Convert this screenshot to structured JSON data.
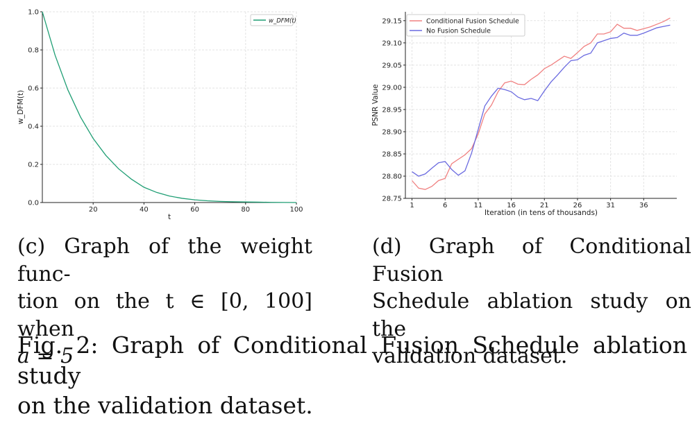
{
  "captions": {
    "c_line1": "(c) Graph of the weight func-",
    "c_line2": "tion on the t ∈ [0, 100] when",
    "c_line3": "a = 5",
    "d_line1": "(d) Graph of Conditional Fusion",
    "d_line2": "Schedule ablation study on the",
    "d_line3": "validation dataset.",
    "fig_line1": "Fig. 2: Graph of Conditional Fusion Schedule ablation study",
    "fig_line2": "on the validation dataset."
  },
  "chart_data": [
    {
      "type": "line",
      "title": "",
      "xlabel": "t",
      "ylabel": "w_DFM(t)",
      "xlim": [
        0,
        100
      ],
      "ylim": [
        0,
        1
      ],
      "x_ticks": [
        20,
        40,
        60,
        80,
        100
      ],
      "y_ticks": [
        0.0,
        0.2,
        0.4,
        0.6,
        0.8,
        1.0
      ],
      "grid": true,
      "legend_position": "top-right",
      "color": "#1f9e74",
      "series": [
        {
          "name": "w_DFM(t)",
          "x": [
            0,
            5,
            10,
            15,
            20,
            25,
            30,
            35,
            40,
            45,
            50,
            55,
            60,
            65,
            70,
            75,
            80,
            85,
            90,
            95,
            100
          ],
          "values": [
            1.0,
            0.773,
            0.592,
            0.449,
            0.336,
            0.247,
            0.177,
            0.123,
            0.08,
            0.053,
            0.034,
            0.022,
            0.014,
            0.009,
            0.006,
            0.004,
            0.003,
            0.002,
            0.001,
            0.0005,
            0.0
          ]
        }
      ]
    },
    {
      "type": "line",
      "title": "",
      "xlabel": "Iteration (in tens of thousands)",
      "ylabel": "PSNR Value",
      "xlim": [
        0,
        41
      ],
      "ylim": [
        28.75,
        29.17
      ],
      "x_ticks": [
        1,
        6,
        11,
        16,
        21,
        26,
        31,
        36
      ],
      "y_ticks": [
        28.75,
        28.8,
        28.85,
        28.9,
        28.95,
        29.0,
        29.05,
        29.1,
        29.15
      ],
      "grid": true,
      "legend_position": "top-left",
      "series": [
        {
          "name": "Conditional Fusion Schedule",
          "color": "#f08080",
          "x": [
            1,
            2,
            3,
            4,
            5,
            6,
            7,
            8,
            9,
            10,
            11,
            12,
            13,
            14,
            15,
            16,
            17,
            18,
            19,
            20,
            21,
            22,
            23,
            24,
            25,
            26,
            27,
            28,
            29,
            30,
            31,
            32,
            33,
            34,
            35,
            36,
            37,
            38,
            39,
            40
          ],
          "values": [
            28.79,
            28.773,
            28.77,
            28.777,
            28.79,
            28.795,
            28.828,
            28.838,
            28.848,
            28.862,
            28.895,
            28.94,
            28.96,
            28.99,
            29.01,
            29.014,
            29.007,
            29.006,
            29.018,
            29.028,
            29.042,
            29.05,
            29.06,
            29.07,
            29.065,
            29.078,
            29.092,
            29.1,
            29.12,
            29.12,
            29.125,
            29.142,
            29.133,
            29.133,
            29.128,
            29.132,
            29.136,
            29.142,
            29.148,
            29.156
          ]
        },
        {
          "name": "No Fusion Schedule",
          "color": "#6a6ae0",
          "x": [
            1,
            2,
            3,
            4,
            5,
            6,
            7,
            8,
            9,
            10,
            11,
            12,
            13,
            14,
            15,
            16,
            17,
            18,
            19,
            20,
            21,
            22,
            23,
            24,
            25,
            26,
            27,
            28,
            29,
            30,
            31,
            32,
            33,
            34,
            35,
            36,
            37,
            38,
            39,
            40
          ],
          "values": [
            28.81,
            28.8,
            28.805,
            28.818,
            28.83,
            28.833,
            28.815,
            28.802,
            28.812,
            28.852,
            28.905,
            28.958,
            28.98,
            28.998,
            28.995,
            28.99,
            28.978,
            28.972,
            28.975,
            28.97,
            28.992,
            29.012,
            29.028,
            29.045,
            29.06,
            29.062,
            29.072,
            29.077,
            29.1,
            29.105,
            29.11,
            29.112,
            29.122,
            29.117,
            29.117,
            29.122,
            29.128,
            29.134,
            29.137,
            29.14
          ]
        }
      ]
    }
  ]
}
